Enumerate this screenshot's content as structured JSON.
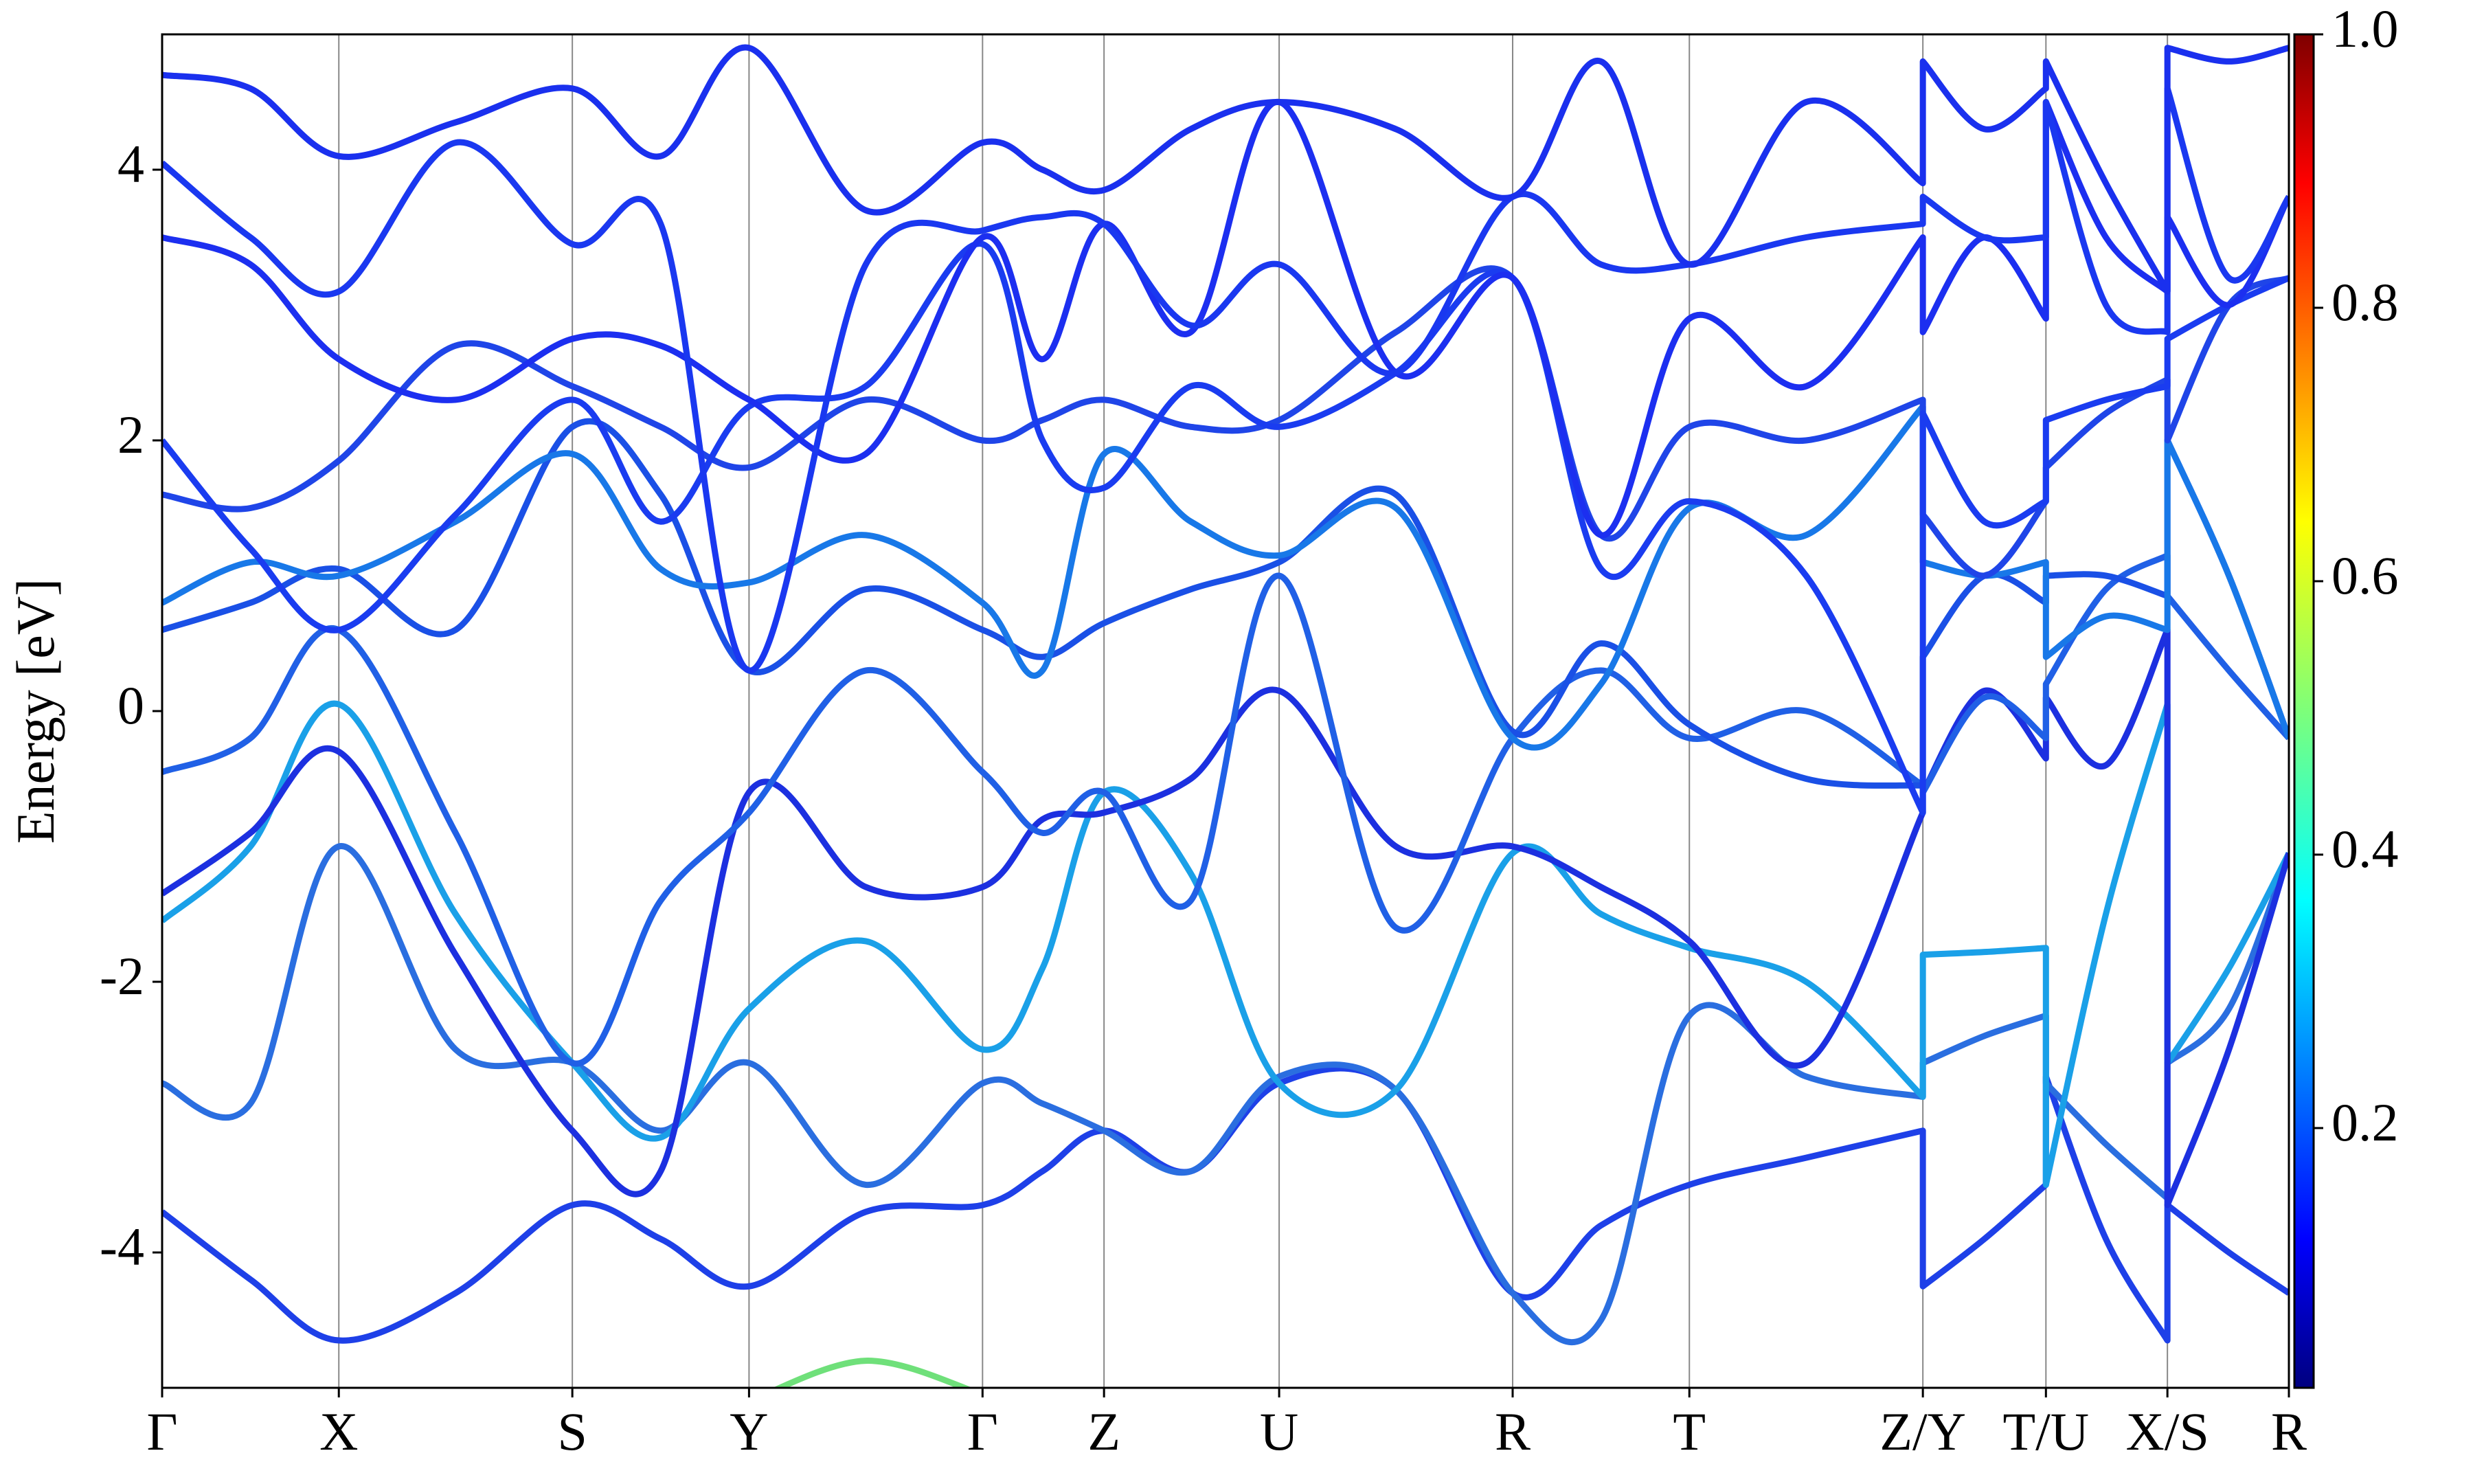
{
  "chart_data": {
    "type": "line",
    "ylabel": "Energy [eV]",
    "xlim": [
      0,
      13.48
    ],
    "ylim": [
      -5,
      5
    ],
    "xticks": [
      {
        "value": 0,
        "label": "Γ"
      },
      {
        "value": 1.12,
        "label": "X"
      },
      {
        "value": 2.6,
        "label": "S"
      },
      {
        "value": 3.72,
        "label": "Y"
      },
      {
        "value": 5.2,
        "label": "Γ"
      },
      {
        "value": 5.97,
        "label": "Z"
      },
      {
        "value": 7.08,
        "label": "U"
      },
      {
        "value": 8.56,
        "label": "R"
      },
      {
        "value": 9.68,
        "label": "T"
      },
      {
        "value": 11.16,
        "label": "Z/Y"
      },
      {
        "value": 11.94,
        "label": "T/U"
      },
      {
        "value": 12.71,
        "label": "X/S"
      },
      {
        "value": 13.48,
        "label": "R"
      }
    ],
    "yticks": [
      -4,
      -2,
      0,
      2,
      4
    ],
    "grid": true,
    "x": [
      0,
      0.56,
      1.12,
      1.86,
      2.6,
      3.16,
      3.72,
      4.46,
      5.2,
      5.58,
      5.97,
      6.52,
      7.08,
      7.82,
      8.56,
      9.12,
      9.68,
      10.42,
      11.16,
      11.16,
      11.55,
      11.94,
      11.94,
      12.32,
      12.71,
      12.71,
      13.1,
      13.48
    ],
    "series": [
      {
        "color": "#1e40e8",
        "values": [
          -3.7,
          -4.2,
          -4.65,
          -4.3,
          -3.65,
          -3.9,
          -4.25,
          -3.7,
          -3.65,
          -3.4,
          -3.1,
          -3.4,
          -2.75,
          -2.8,
          -4.3,
          -3.8,
          -3.5,
          -3.3,
          -3.1,
          -4.25,
          -3.9,
          -3.5,
          -2.7,
          -3.9,
          -4.65,
          -3.65,
          -4.0,
          -4.3
        ]
      },
      {
        "color": "#2a6ee0",
        "values": [
          -2.75,
          -2.9,
          -1.0,
          -2.5,
          -2.6,
          -3.1,
          -2.6,
          -3.5,
          -2.75,
          -2.9,
          -3.1,
          -3.4,
          -2.7,
          -2.8,
          -4.3,
          -4.5,
          -2.25,
          -2.7,
          -2.85,
          -2.6,
          -2.4,
          -2.25,
          -2.75,
          -3.2,
          -3.6,
          -2.6,
          -2.2,
          -1.05
        ]
      },
      {
        "color": "#1aa0e8",
        "values": [
          -1.55,
          -1.0,
          0.05,
          -1.5,
          -2.6,
          -3.15,
          -2.2,
          -1.7,
          -2.5,
          -1.9,
          -0.6,
          -1.2,
          -2.75,
          -2.8,
          -1.05,
          -1.5,
          -1.75,
          -2.0,
          -2.85,
          -1.8,
          -1.78,
          -1.75,
          -3.5,
          -1.5,
          0.05,
          -2.6,
          -1.9,
          -1.05
        ]
      },
      {
        "color": "#1c30e0",
        "values": [
          -1.35,
          -0.9,
          -0.3,
          -1.8,
          -3.1,
          -3.4,
          -0.6,
          -1.3,
          -1.3,
          -0.8,
          -0.75,
          -0.5,
          0.15,
          -1.0,
          -1.0,
          -1.3,
          -1.7,
          -2.6,
          -0.75,
          -0.6,
          0.15,
          -0.35,
          0.1,
          -0.4,
          0.6,
          -3.65,
          -2.5,
          -1.05
        ]
      },
      {
        "color": "#2060e6",
        "values": [
          -0.45,
          -0.2,
          0.6,
          -0.9,
          -2.6,
          -1.4,
          -0.75,
          0.3,
          -0.45,
          -0.9,
          -0.6,
          -1.4,
          1.0,
          -1.6,
          -0.2,
          0.3,
          -0.2,
          0.0,
          -0.55,
          -0.6,
          0.1,
          -0.2,
          0.2,
          0.9,
          1.15,
          0.85,
          0.3,
          -0.2
        ]
      },
      {
        "color": "#1a50e6",
        "values": [
          0.6,
          0.8,
          1.05,
          0.6,
          2.1,
          1.6,
          0.3,
          0.9,
          0.6,
          0.4,
          0.65,
          0.9,
          1.1,
          1.6,
          -0.15,
          0.5,
          -0.1,
          -0.5,
          -0.55,
          0.4,
          1.0,
          0.8,
          1.0,
          1.0,
          0.85,
          2.0,
          1.0,
          -0.2
        ]
      },
      {
        "color": "#1878e8",
        "values": [
          0.8,
          1.1,
          1.0,
          1.4,
          1.9,
          1.05,
          0.95,
          1.3,
          0.8,
          0.3,
          1.9,
          1.4,
          1.15,
          1.5,
          -0.2,
          0.2,
          1.5,
          1.3,
          2.25,
          1.1,
          1.0,
          1.1,
          0.4,
          0.7,
          0.6,
          2.0,
          1.0,
          -0.2
        ]
      },
      {
        "color": "#1f45e8",
        "values": [
          1.6,
          1.5,
          1.85,
          2.7,
          2.4,
          2.1,
          1.8,
          2.3,
          2.0,
          2.15,
          2.3,
          2.1,
          2.15,
          2.8,
          3.2,
          1.3,
          2.1,
          2.0,
          2.3,
          1.45,
          1.0,
          1.55,
          1.8,
          2.2,
          2.45,
          2.0,
          3.0,
          3.2
        ]
      },
      {
        "color": "#1a3cf0",
        "values": [
          2.0,
          1.2,
          0.6,
          1.45,
          2.3,
          1.4,
          2.25,
          2.4,
          3.45,
          2.0,
          1.65,
          2.4,
          2.1,
          2.5,
          3.2,
          1.05,
          1.55,
          1.0,
          -0.75,
          2.2,
          1.4,
          1.55,
          2.15,
          2.3,
          2.4,
          2.75,
          3.0,
          3.2
        ]
      },
      {
        "color": "#1c2ff0",
        "values": [
          3.5,
          3.3,
          2.6,
          2.3,
          2.75,
          2.7,
          2.3,
          1.9,
          3.5,
          2.6,
          3.6,
          2.8,
          4.5,
          2.5,
          3.2,
          1.3,
          2.9,
          2.4,
          3.5,
          2.8,
          3.5,
          2.9,
          4.5,
          3.5,
          3.1,
          3.65,
          3.0,
          3.8
        ]
      },
      {
        "color": "#1a38f0",
        "values": [
          4.05,
          3.5,
          3.1,
          4.2,
          3.45,
          3.6,
          0.3,
          3.3,
          3.55,
          3.65,
          3.6,
          2.85,
          3.3,
          2.5,
          3.8,
          3.3,
          3.3,
          3.5,
          3.6,
          3.8,
          3.5,
          3.5,
          4.5,
          3.0,
          2.8,
          4.6,
          3.2,
          3.8
        ]
      },
      {
        "color": "#1a30ee",
        "values": [
          4.7,
          4.6,
          4.1,
          4.35,
          4.6,
          4.1,
          4.9,
          3.7,
          4.2,
          4.0,
          3.85,
          4.3,
          4.5,
          4.3,
          3.8,
          4.8,
          3.3,
          4.5,
          3.9,
          4.8,
          4.3,
          4.6,
          4.8,
          3.9,
          3.1,
          4.9,
          4.8,
          4.9
        ]
      },
      {
        "color": "#6fe07a",
        "values": [
          null,
          null,
          null,
          null,
          null,
          null,
          -5.1,
          -4.8,
          -5.05,
          null,
          null,
          null,
          null,
          null,
          null,
          null,
          null,
          null,
          null,
          null,
          null,
          null,
          null,
          null,
          null,
          null,
          null,
          null
        ]
      }
    ],
    "colorbar": {
      "lim": [
        0.01,
        1
      ],
      "ticks": [
        0.2,
        0.4,
        0.6,
        0.8,
        {
          "value": 1,
          "label": "1.0"
        }
      ]
    }
  }
}
